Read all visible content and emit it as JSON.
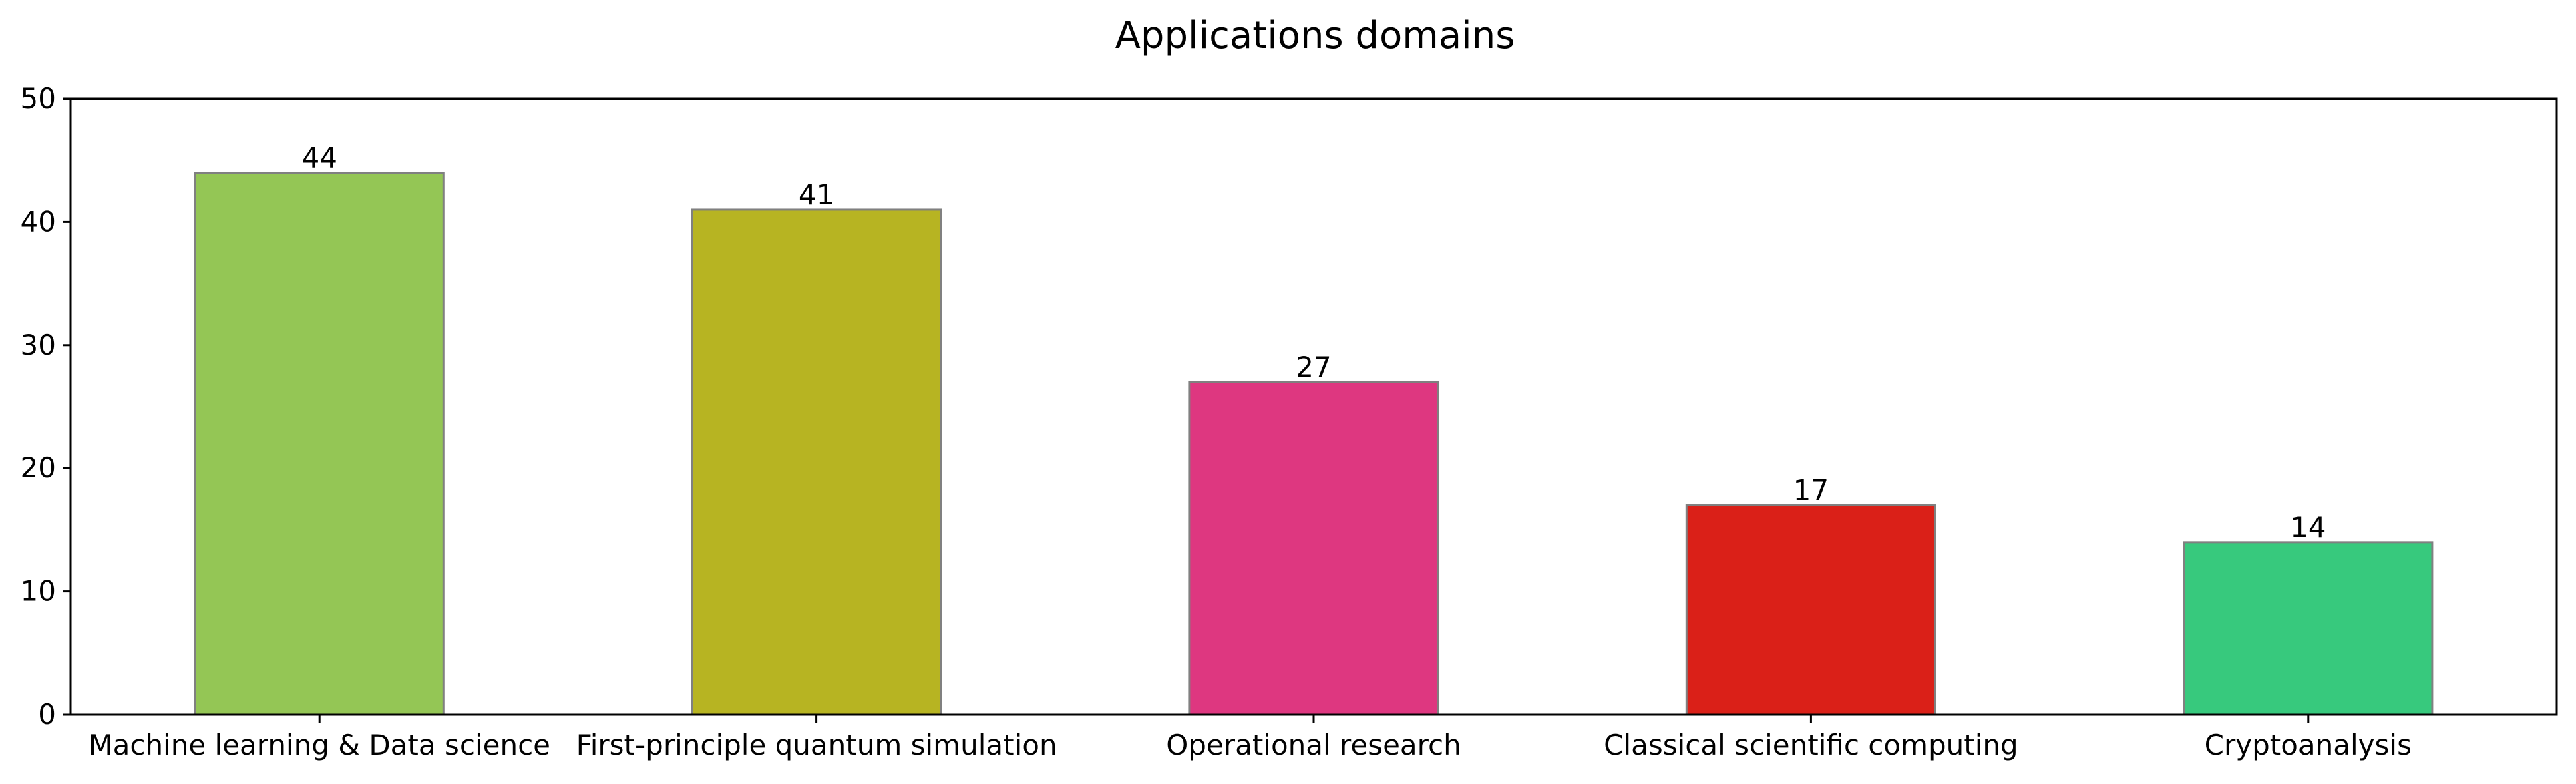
{
  "chart_data": {
    "type": "bar",
    "title": "Applications domains",
    "xlabel": "",
    "ylabel": "",
    "categories": [
      "Machine learning & Data science",
      "First-principle quantum simulation",
      "Operational research",
      "Classical scientific computing",
      "Cryptoanalysis"
    ],
    "values": [
      44,
      41,
      27,
      17,
      14
    ],
    "colors": [
      "#94c655",
      "#b7b422",
      "#de3780",
      "#da2018",
      "#37c97d"
    ],
    "edge_color": "#808080",
    "ylim": [
      0,
      50
    ],
    "yticks": [
      0,
      10,
      20,
      30,
      40,
      50
    ],
    "grid": false,
    "legend": "none"
  }
}
